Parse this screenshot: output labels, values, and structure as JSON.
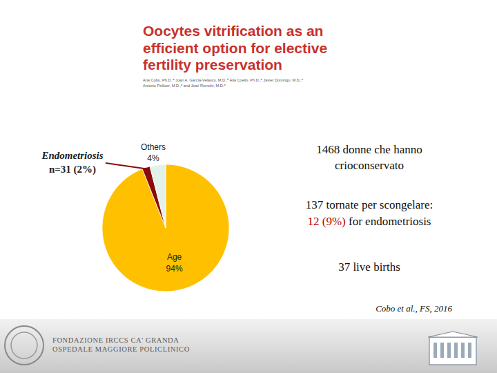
{
  "chart_data": {
    "type": "pie",
    "title": "Oocytes vitrification as an\nefficient option for elective\nfertility preservation",
    "subtitle": "Ana Cobo, Ph.D.,ᵃ Juan A. García-Velasco, M.D.,ᵇ Aila Coello, Ph.D.,ᵃ Javier Domingo, M.D.,ᵃ\nAntonio Pellicer, M.D.,ᵃ and José Remohí, M.D.ᵃ",
    "categories": [
      "Age",
      "Endometriosis",
      "Others"
    ],
    "values": [
      94,
      2,
      4
    ],
    "value_labels": [
      "94%",
      "n=31 (2%)",
      "4%"
    ],
    "colors": [
      "#FFC000",
      "#8B0A0A",
      "#E3F1EB"
    ],
    "data_labels": true,
    "annotations": [
      {
        "parts": [
          {
            "text": "1468 donne che hanno\ncrioconservato"
          }
        ]
      },
      {
        "parts": [
          {
            "text": "137 tornate per scongelare:"
          }
        ]
      },
      {
        "parts": [
          {
            "text": "12 (9%)",
            "color": "#C00000"
          },
          {
            "text": " for endometriosis"
          }
        ]
      },
      {
        "parts": [
          {
            "text": "37 live births"
          }
        ]
      }
    ],
    "source": "Cobo et al., FS, 2016",
    "footer": [
      "FONDAZIONE IRCCS CA' GRANDA",
      "OSPEDALE MAGGIORE POLICLINICO"
    ]
  }
}
